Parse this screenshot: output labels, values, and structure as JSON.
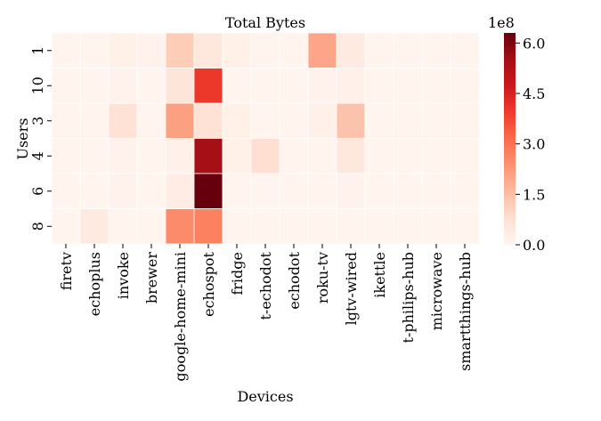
{
  "chart_data": {
    "type": "heatmap",
    "title": "Total Bytes",
    "xlabel": "Devices",
    "ylabel": "Users",
    "x_categories": [
      "firetv",
      "echoplus",
      "invoke",
      "brewer",
      "google-home-mini",
      "echospot",
      "fridge",
      "t-echodot",
      "echodot",
      "roku-tv",
      "lgtv-wired",
      "ikettle",
      "t-philips-hub",
      "microwave",
      "smartthings-hub"
    ],
    "y_categories": [
      "1",
      "10",
      "3",
      "4",
      "6",
      "8"
    ],
    "values": [
      [
        5000000,
        5000000,
        20000000,
        10000000,
        120000000,
        50000000,
        20000000,
        5000000,
        5000000,
        200000000,
        40000000,
        5000000,
        5000000,
        5000000,
        5000000
      ],
      [
        5000000,
        5000000,
        10000000,
        5000000,
        60000000,
        400000000,
        5000000,
        5000000,
        5000000,
        10000000,
        15000000,
        5000000,
        5000000,
        5000000,
        5000000
      ],
      [
        5000000,
        5000000,
        70000000,
        5000000,
        210000000,
        70000000,
        20000000,
        5000000,
        5000000,
        15000000,
        140000000,
        5000000,
        5000000,
        5000000,
        5000000
      ],
      [
        5000000,
        5000000,
        10000000,
        5000000,
        15000000,
        550000000,
        20000000,
        80000000,
        5000000,
        5000000,
        50000000,
        5000000,
        5000000,
        5000000,
        5000000
      ],
      [
        5000000,
        5000000,
        10000000,
        5000000,
        30000000,
        630000000,
        5000000,
        5000000,
        5000000,
        5000000,
        10000000,
        5000000,
        5000000,
        5000000,
        5000000
      ],
      [
        5000000,
        40000000,
        5000000,
        5000000,
        250000000,
        270000000,
        5000000,
        5000000,
        5000000,
        5000000,
        5000000,
        5000000,
        5000000,
        5000000,
        5000000
      ]
    ],
    "colorbar": {
      "min": 0,
      "max": 630000000,
      "ticks": [
        0,
        150000000,
        300000000,
        450000000,
        600000000
      ],
      "tick_labels": [
        "0.0",
        "1.5",
        "3.0",
        "4.5",
        "6.0"
      ],
      "offset_label": "1e8",
      "colormap": "Reds"
    },
    "grid_lines": true,
    "cell_border_color": "#ffffff"
  }
}
